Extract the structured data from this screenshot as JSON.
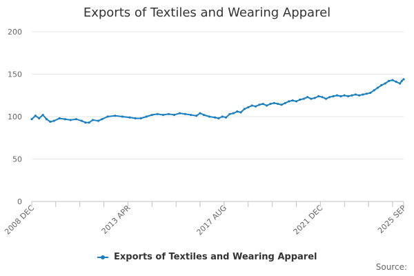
{
  "chart_data": {
    "type": "line",
    "title": "Exports of Textiles and Wearing Apparel",
    "xlabel": "",
    "ylabel": "",
    "ylim": [
      0,
      200
    ],
    "yticks": [
      0,
      50,
      100,
      150,
      200
    ],
    "x_labels": [
      "2008 DEC",
      "2013 APR",
      "2017 AUG",
      "2021 DEC",
      "2025 SEP"
    ],
    "x_label_months": [
      0,
      52,
      104,
      156,
      201
    ],
    "x_range_months": [
      0,
      201
    ],
    "grid": true,
    "legend_position": "bottom",
    "series": [
      {
        "name": "Exports of Textiles and Wearing Apparel",
        "color": "#1a7fbf",
        "points": [
          {
            "x": 0,
            "y": 97
          },
          {
            "x": 2,
            "y": 101
          },
          {
            "x": 4,
            "y": 98
          },
          {
            "x": 6,
            "y": 102
          },
          {
            "x": 8,
            "y": 97
          },
          {
            "x": 10,
            "y": 94
          },
          {
            "x": 12,
            "y": 95
          },
          {
            "x": 15,
            "y": 98
          },
          {
            "x": 18,
            "y": 97
          },
          {
            "x": 21,
            "y": 96
          },
          {
            "x": 24,
            "y": 97
          },
          {
            "x": 27,
            "y": 95
          },
          {
            "x": 29,
            "y": 93
          },
          {
            "x": 31,
            "y": 93
          },
          {
            "x": 33,
            "y": 96
          },
          {
            "x": 36,
            "y": 95
          },
          {
            "x": 38,
            "y": 97
          },
          {
            "x": 41,
            "y": 100
          },
          {
            "x": 45,
            "y": 101
          },
          {
            "x": 49,
            "y": 100
          },
          {
            "x": 53,
            "y": 99
          },
          {
            "x": 56,
            "y": 98
          },
          {
            "x": 59,
            "y": 98
          },
          {
            "x": 62,
            "y": 100
          },
          {
            "x": 65,
            "y": 102
          },
          {
            "x": 68,
            "y": 103
          },
          {
            "x": 71,
            "y": 102
          },
          {
            "x": 74,
            "y": 103
          },
          {
            "x": 77,
            "y": 102
          },
          {
            "x": 80,
            "y": 104
          },
          {
            "x": 83,
            "y": 103
          },
          {
            "x": 86,
            "y": 102
          },
          {
            "x": 89,
            "y": 101
          },
          {
            "x": 91,
            "y": 104
          },
          {
            "x": 93,
            "y": 102
          },
          {
            "x": 96,
            "y": 100
          },
          {
            "x": 99,
            "y": 99
          },
          {
            "x": 101,
            "y": 98
          },
          {
            "x": 103,
            "y": 100
          },
          {
            "x": 105,
            "y": 99
          },
          {
            "x": 107,
            "y": 103
          },
          {
            "x": 109,
            "y": 104
          },
          {
            "x": 111,
            "y": 106
          },
          {
            "x": 113,
            "y": 105
          },
          {
            "x": 115,
            "y": 109
          },
          {
            "x": 117,
            "y": 111
          },
          {
            "x": 119,
            "y": 113
          },
          {
            "x": 121,
            "y": 112
          },
          {
            "x": 123,
            "y": 114
          },
          {
            "x": 125,
            "y": 115
          },
          {
            "x": 127,
            "y": 113
          },
          {
            "x": 129,
            "y": 115
          },
          {
            "x": 131,
            "y": 116
          },
          {
            "x": 133,
            "y": 115
          },
          {
            "x": 135,
            "y": 114
          },
          {
            "x": 137,
            "y": 116
          },
          {
            "x": 139,
            "y": 118
          },
          {
            "x": 141,
            "y": 119
          },
          {
            "x": 143,
            "y": 118
          },
          {
            "x": 145,
            "y": 120
          },
          {
            "x": 147,
            "y": 121
          },
          {
            "x": 149,
            "y": 123
          },
          {
            "x": 151,
            "y": 121
          },
          {
            "x": 153,
            "y": 122
          },
          {
            "x": 155,
            "y": 124
          },
          {
            "x": 157,
            "y": 123
          },
          {
            "x": 159,
            "y": 121
          },
          {
            "x": 161,
            "y": 123
          },
          {
            "x": 163,
            "y": 124
          },
          {
            "x": 165,
            "y": 125
          },
          {
            "x": 167,
            "y": 124
          },
          {
            "x": 169,
            "y": 125
          },
          {
            "x": 171,
            "y": 124
          },
          {
            "x": 173,
            "y": 125
          },
          {
            "x": 175,
            "y": 126
          },
          {
            "x": 177,
            "y": 125
          },
          {
            "x": 179,
            "y": 126
          },
          {
            "x": 181,
            "y": 127
          },
          {
            "x": 183,
            "y": 128
          },
          {
            "x": 185,
            "y": 131
          },
          {
            "x": 187,
            "y": 134
          },
          {
            "x": 189,
            "y": 137
          },
          {
            "x": 191,
            "y": 139
          },
          {
            "x": 193,
            "y": 142
          },
          {
            "x": 195,
            "y": 143
          },
          {
            "x": 197,
            "y": 141
          },
          {
            "x": 199,
            "y": 139
          },
          {
            "x": 200,
            "y": 142
          },
          {
            "x": 201,
            "y": 144
          }
        ]
      }
    ]
  },
  "source_label": "Source:"
}
